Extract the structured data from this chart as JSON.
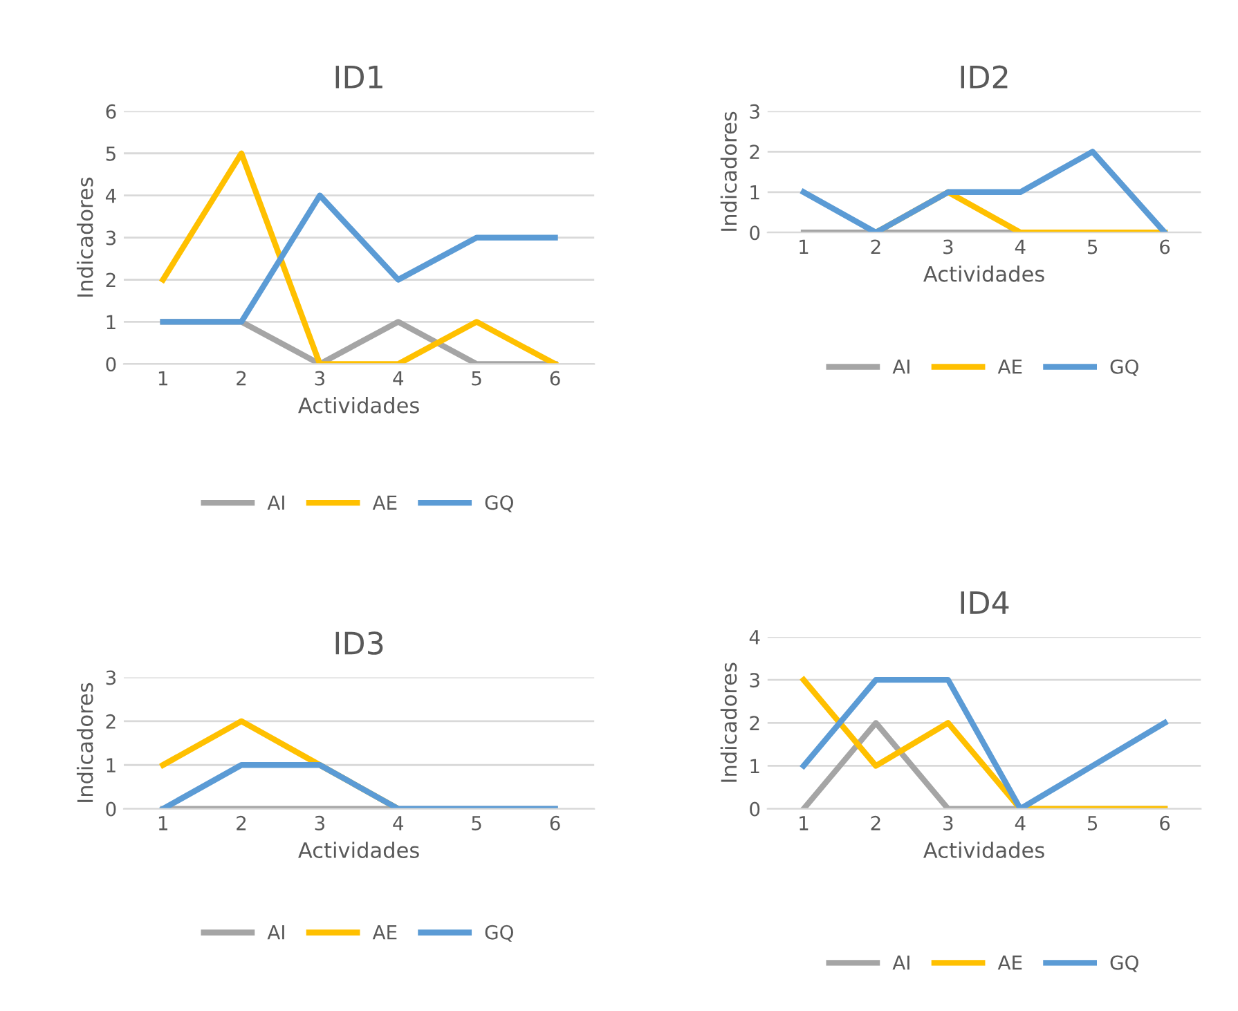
{
  "chart_data": [
    {
      "type": "line",
      "title": "ID1",
      "xlabel": "Actividades",
      "ylabel": "Indicadores",
      "categories": [
        "1",
        "2",
        "3",
        "4",
        "5",
        "6"
      ],
      "ylim": [
        0,
        6
      ],
      "yticks": [
        0,
        1,
        2,
        3,
        4,
        5,
        6
      ],
      "grid": "y",
      "legend": "bottom",
      "marker": "none",
      "series": [
        {
          "name": "AI",
          "color": "#a5a5a5",
          "values": [
            1,
            1,
            0,
            1,
            0,
            0
          ]
        },
        {
          "name": "AE",
          "color": "#ffc000",
          "values": [
            2,
            5,
            0,
            0,
            1,
            0
          ]
        },
        {
          "name": "GQ",
          "color": "#5b9bd5",
          "values": [
            1,
            1,
            4,
            2,
            3,
            3
          ]
        }
      ]
    },
    {
      "type": "line",
      "title": "ID2",
      "xlabel": "Actividades",
      "ylabel": "Indicadores",
      "categories": [
        "1",
        "2",
        "3",
        "4",
        "5",
        "6"
      ],
      "ylim": [
        0,
        3
      ],
      "yticks": [
        0,
        1,
        2,
        3
      ],
      "grid": "y",
      "legend": "bottom",
      "marker": "none",
      "series": [
        {
          "name": "AI",
          "color": "#a5a5a5",
          "values": [
            0,
            0,
            0,
            0,
            0,
            0
          ]
        },
        {
          "name": "AE",
          "color": "#ffc000",
          "values": [
            null,
            0,
            1,
            0,
            0,
            0
          ]
        },
        {
          "name": "GQ",
          "color": "#5b9bd5",
          "values": [
            1,
            0,
            1,
            1,
            2,
            0
          ]
        }
      ]
    },
    {
      "type": "line",
      "title": "ID3",
      "xlabel": "Actividades",
      "ylabel": "Indicadores",
      "categories": [
        "1",
        "2",
        "3",
        "4",
        "5",
        "6"
      ],
      "ylim": [
        0,
        3
      ],
      "yticks": [
        0,
        1,
        2,
        3
      ],
      "grid": "y",
      "legend": "bottom",
      "marker": "none",
      "series": [
        {
          "name": "AI",
          "color": "#a5a5a5",
          "values": [
            0,
            0,
            0,
            0,
            0,
            0
          ]
        },
        {
          "name": "AE",
          "color": "#ffc000",
          "values": [
            1,
            2,
            1,
            0,
            null,
            null
          ]
        },
        {
          "name": "GQ",
          "color": "#5b9bd5",
          "values": [
            0,
            1,
            1,
            0,
            0,
            0
          ]
        }
      ]
    },
    {
      "type": "line",
      "title": "ID4",
      "xlabel": "Actividades",
      "ylabel": "Indicadores",
      "categories": [
        "1",
        "2",
        "3",
        "4",
        "5",
        "6"
      ],
      "ylim": [
        0,
        4
      ],
      "yticks": [
        0,
        1,
        2,
        3,
        4
      ],
      "grid": "y",
      "legend": "bottom",
      "marker": "none",
      "series": [
        {
          "name": "AI",
          "color": "#a5a5a5",
          "values": [
            0,
            2,
            0,
            0,
            0,
            0
          ]
        },
        {
          "name": "AE",
          "color": "#ffc000",
          "values": [
            3,
            1,
            2,
            0,
            0,
            0
          ]
        },
        {
          "name": "GQ",
          "color": "#5b9bd5",
          "values": [
            1,
            3,
            3,
            0,
            1,
            2
          ]
        }
      ]
    }
  ]
}
